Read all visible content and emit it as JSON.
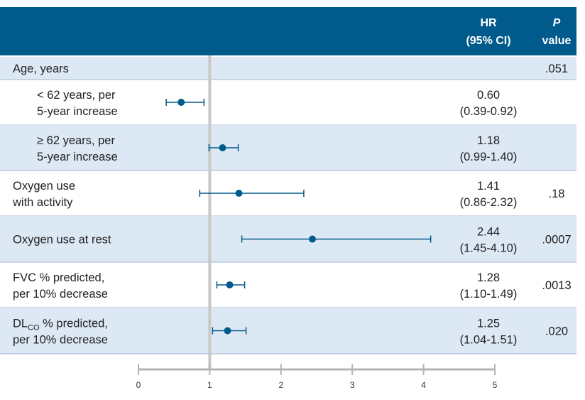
{
  "colors": {
    "header_bg": "#015a8c",
    "row_band": "#dde8f5",
    "row_border": "#9fb6cf",
    "marker": "#015a8c",
    "reference_line": "#c8c8c8",
    "axis": "#b4b4b4"
  },
  "header": {
    "hr_line1": "HR",
    "hr_line2": "(95% CI)",
    "p_line1": "P",
    "p_line2": "value"
  },
  "chart_data": {
    "type": "forest",
    "xlim": [
      0,
      5
    ],
    "reference_value": 1,
    "ticks": [
      0,
      1,
      2,
      3,
      4,
      5
    ],
    "rows": [
      {
        "label": [
          "Age, years"
        ],
        "indent": false,
        "shaded": true,
        "hr": null,
        "ci_low": null,
        "ci_high": null,
        "hr_text": "",
        "ci_text": "",
        "p": ".051"
      },
      {
        "label": [
          "< 62 years, per",
          "5-year increase"
        ],
        "indent": true,
        "shaded": false,
        "hr": 0.6,
        "ci_low": 0.39,
        "ci_high": 0.92,
        "hr_text": "0.60",
        "ci_text": "(0.39-0.92)",
        "p": ""
      },
      {
        "label": [
          "≥ 62 years, per",
          "5-year increase"
        ],
        "indent": true,
        "shaded": true,
        "hr": 1.18,
        "ci_low": 0.99,
        "ci_high": 1.4,
        "hr_text": "1.18",
        "ci_text": "(0.99-1.40)",
        "p": ""
      },
      {
        "label": [
          "Oxygen use",
          "with activity"
        ],
        "indent": false,
        "shaded": false,
        "hr": 1.41,
        "ci_low": 0.86,
        "ci_high": 2.32,
        "hr_text": "1.41",
        "ci_text": "(0.86-2.32)",
        "p": ".18"
      },
      {
        "label": [
          "Oxygen use at rest"
        ],
        "indent": false,
        "shaded": true,
        "hr": 2.44,
        "ci_low": 1.45,
        "ci_high": 4.1,
        "hr_text": "2.44",
        "ci_text": "(1.45-4.10)",
        "p": ".0007"
      },
      {
        "label": [
          "FVC % predicted,",
          "per 10% decrease"
        ],
        "indent": false,
        "shaded": false,
        "hr": 1.28,
        "ci_low": 1.1,
        "ci_high": 1.49,
        "hr_text": "1.28",
        "ci_text": "(1.10-1.49)",
        "p": ".0013"
      },
      {
        "label": [
          "DL",
          "CO",
          " % predicted,",
          "per 10% decrease"
        ],
        "label_has_subscript": true,
        "indent": false,
        "shaded": true,
        "hr": 1.25,
        "ci_low": 1.04,
        "ci_high": 1.51,
        "hr_text": "1.25",
        "ci_text": "(1.04-1.51)",
        "p": ".020"
      }
    ]
  }
}
